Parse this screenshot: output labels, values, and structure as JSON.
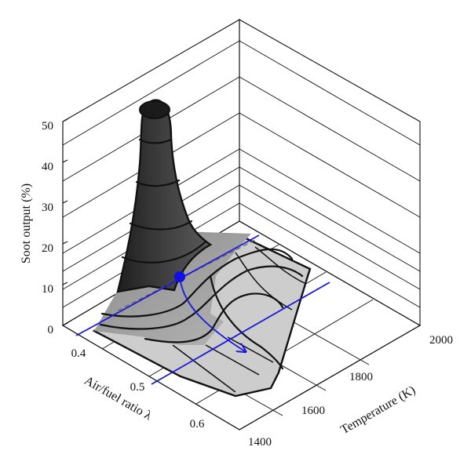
{
  "chart_data": {
    "type": "surface",
    "title": "",
    "zlabel": "Soot output (%)",
    "xlabel": "Air/fuel ratio λ",
    "ylabel": "Temperature (K)",
    "z_ticks": [
      "0",
      "10",
      "20",
      "30",
      "40",
      "50"
    ],
    "x_ticks": [
      "0.4",
      "0.5",
      "0.6"
    ],
    "y_ticks": [
      "1400",
      "1600",
      "1800",
      "2000"
    ],
    "zlim": [
      0,
      55
    ],
    "xlim": [
      0.35,
      0.65
    ],
    "ylim": [
      1350,
      2050
    ],
    "peak": {
      "lambda": 0.4,
      "temperature": 1600,
      "soot": 50
    },
    "operating_point": {
      "lambda": 0.45,
      "temperature": 1700
    },
    "colors": {
      "surface_dark": "#3a3a3a",
      "surface_mid": "#6e6e6e",
      "surface_light": "#cfcfcf",
      "marker": "#1010e0",
      "guide_lines": "#1a1ad8"
    }
  }
}
